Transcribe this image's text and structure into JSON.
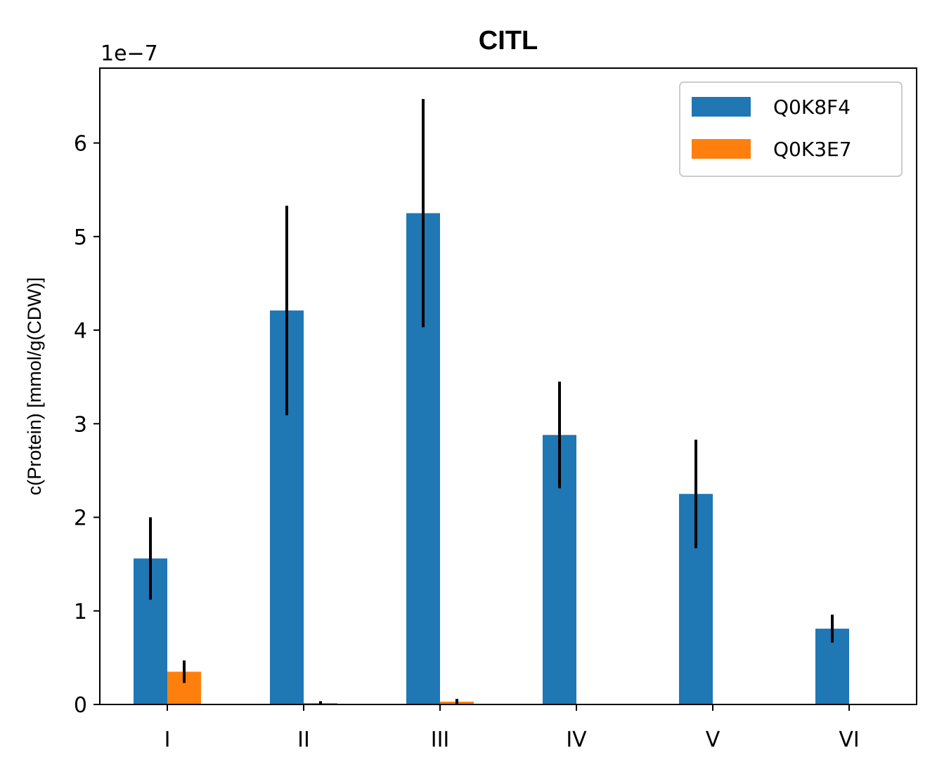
{
  "chart_data": {
    "type": "bar",
    "title": "CITL",
    "xlabel": "",
    "ylabel": "c(Protein) [mmol/g(CDW)]",
    "offset_label": "1e−7",
    "categories": [
      "I",
      "II",
      "III",
      "IV",
      "V",
      "VI"
    ],
    "ylim": [
      0,
      6.8
    ],
    "yticks": [
      0,
      1,
      2,
      3,
      4,
      5,
      6
    ],
    "ytick_labels": [
      "0",
      "1",
      "2",
      "3",
      "4",
      "5",
      "6"
    ],
    "grid": false,
    "legend_position": "top-right",
    "series": [
      {
        "name": "Q0K8F4",
        "color": "#1f77b4",
        "values": [
          1.56,
          4.21,
          5.25,
          2.88,
          2.25,
          0.81
        ],
        "errors": [
          0.44,
          1.12,
          1.22,
          0.57,
          0.58,
          0.15
        ]
      },
      {
        "name": "Q0K3E7",
        "color": "#ff7f0e",
        "values": [
          0.35,
          0.015,
          0.03,
          0,
          0,
          0
        ],
        "errors": [
          0.12,
          0.02,
          0.03,
          0,
          0,
          0
        ]
      }
    ]
  }
}
